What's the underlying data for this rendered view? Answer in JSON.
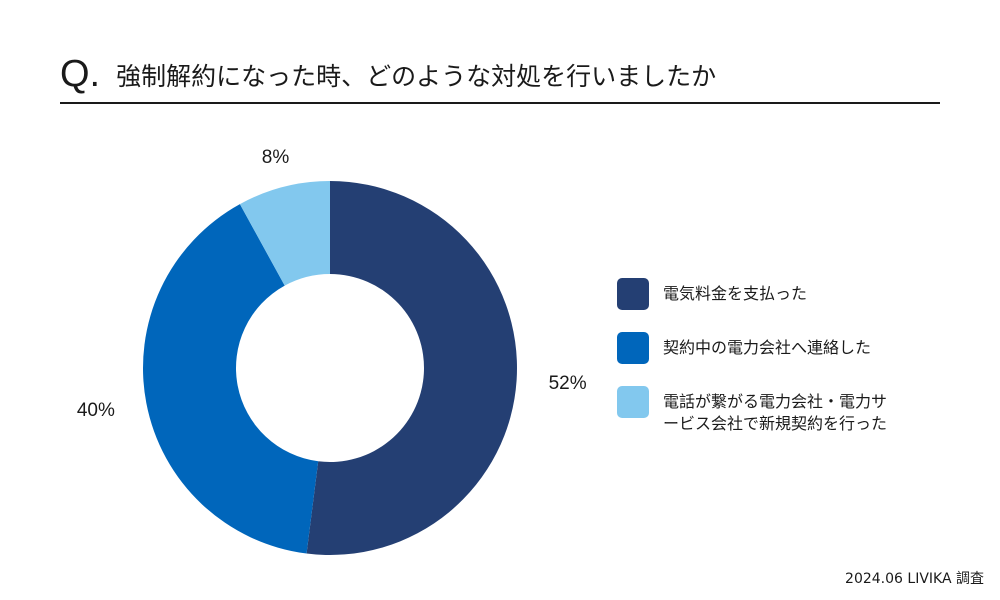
{
  "header": {
    "q_mark": "Q.",
    "question": "強制解約になった時、どのような対処を行いましたか"
  },
  "chart_data": {
    "type": "pie",
    "donut": true,
    "categories": [
      "電気料金を支払った",
      "契約中の電力会社へ連絡した",
      "電話が繋がる電力会社・電力サービス会社で新規契約を行った"
    ],
    "values": [
      52,
      40,
      8
    ],
    "labels": [
      "52%",
      "40%",
      "8%"
    ],
    "colors": [
      "#243f73",
      "#0066bb",
      "#82c8ee"
    ],
    "legend": "right"
  },
  "legend_lines": [
    [
      "電気料金を支払った"
    ],
    [
      "契約中の電力会社へ連絡した"
    ],
    [
      "電話が繋がる電力会社・電力サ",
      "ービス会社で新規契約を行った"
    ]
  ],
  "footer": {
    "credit": "2024.06 LIVIKA 調査"
  }
}
